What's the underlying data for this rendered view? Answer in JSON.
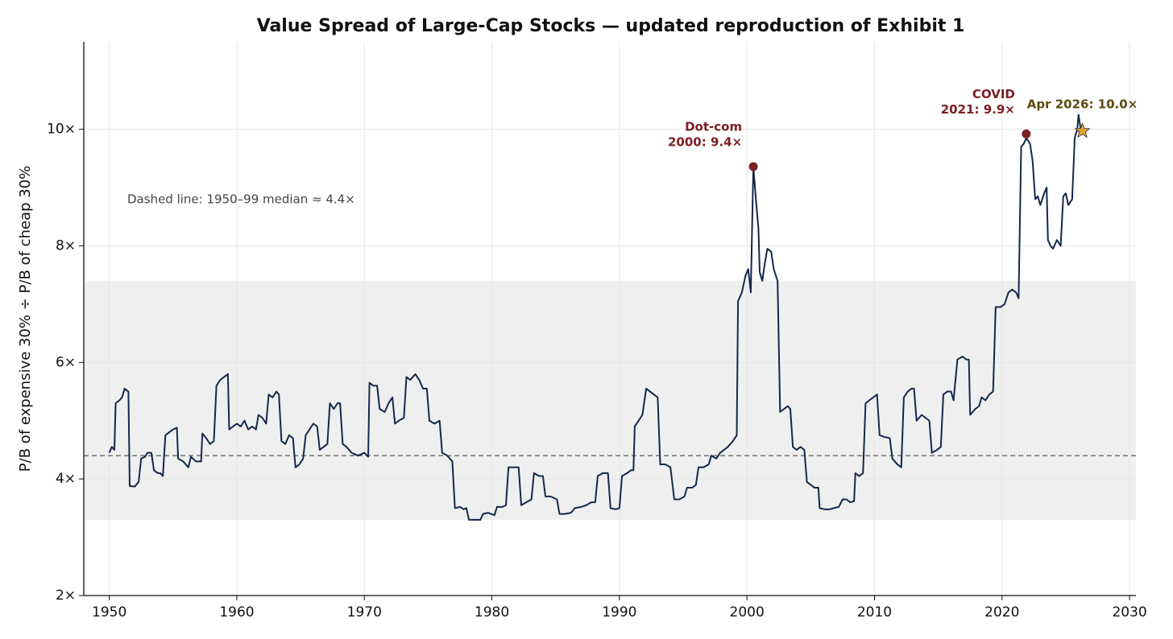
{
  "chart_data": {
    "type": "line",
    "title": "Value Spread of Large-Cap Stocks  —  updated reproduction of Exhibit 1",
    "y_label": "P/B of expensive 30%  ÷  P/B of cheap 30%",
    "color": "#14284b",
    "xlim": [
      1948,
      2030.5
    ],
    "ylim": [
      2,
      11.5
    ],
    "xticks": [
      1950,
      1960,
      1970,
      1980,
      1990,
      2000,
      2010,
      2020,
      2030
    ],
    "yticks": [
      {
        "value": 2,
        "label": "2×"
      },
      {
        "value": 4,
        "label": "4×"
      },
      {
        "value": 6,
        "label": "6×"
      },
      {
        "value": 8,
        "label": "8×"
      },
      {
        "value": 10,
        "label": "10×"
      }
    ],
    "grid": true,
    "shaded_band": [
      3.3,
      7.4
    ],
    "median_line": {
      "value": 4.4,
      "note": "Dashed line: 1950–99 median ≈ 4.4×"
    },
    "x": [
      1950.0,
      1950.2,
      1950.4,
      1950.5,
      1950.8,
      1951.0,
      1951.2,
      1951.5,
      1951.6,
      1952.0,
      1952.3,
      1952.5,
      1952.8,
      1953.0,
      1953.3,
      1953.5,
      1953.8,
      1954.0,
      1954.2,
      1954.4,
      1954.7,
      1955.0,
      1955.3,
      1955.4,
      1955.8,
      1956.2,
      1956.4,
      1956.8,
      1957.2,
      1957.3,
      1957.6,
      1957.9,
      1958.2,
      1958.4,
      1958.7,
      1959.0,
      1959.3,
      1959.4,
      1959.7,
      1960.0,
      1960.3,
      1960.6,
      1960.9,
      1961.2,
      1961.5,
      1961.7,
      1962.0,
      1962.3,
      1962.5,
      1962.8,
      1963.1,
      1963.3,
      1963.5,
      1963.8,
      1964.1,
      1964.4,
      1964.6,
      1964.9,
      1965.2,
      1965.4,
      1965.7,
      1966.0,
      1966.3,
      1966.5,
      1966.8,
      1967.1,
      1967.3,
      1967.6,
      1967.9,
      1968.1,
      1968.3,
      1968.6,
      1969.0,
      1969.5,
      1970.0,
      1970.3,
      1970.4,
      1970.7,
      1971.0,
      1971.2,
      1971.6,
      1971.9,
      1972.2,
      1972.4,
      1972.7,
      1973.1,
      1973.3,
      1973.6,
      1974.0,
      1974.3,
      1974.6,
      1974.9,
      1975.1,
      1975.5,
      1975.9,
      1976.1,
      1976.5,
      1976.9,
      1977.1,
      1977.5,
      1977.8,
      1978.0,
      1978.2,
      1978.7,
      1979.1,
      1979.3,
      1979.7,
      1980.2,
      1980.4,
      1980.8,
      1981.1,
      1981.3,
      1981.7,
      1982.1,
      1982.3,
      1982.7,
      1983.1,
      1983.3,
      1983.7,
      1984.0,
      1984.2,
      1984.6,
      1985.1,
      1985.3,
      1985.7,
      1986.2,
      1986.5,
      1987.0,
      1987.4,
      1987.8,
      1988.1,
      1988.3,
      1988.7,
      1989.1,
      1989.3,
      1989.7,
      1990.0,
      1990.2,
      1990.6,
      1990.9,
      1991.1,
      1991.2,
      1991.5,
      1991.8,
      1992.1,
      1992.4,
      1992.7,
      1993.0,
      1993.2,
      1993.6,
      1994.0,
      1994.3,
      1994.7,
      1995.1,
      1995.3,
      1995.7,
      1996.0,
      1996.2,
      1996.6,
      1997.0,
      1997.2,
      1997.6,
      1997.9,
      1998.2,
      1998.5,
      1998.9,
      1999.2,
      1999.3,
      1999.6,
      1999.9,
      2000.1,
      2000.3,
      2000.5,
      2000.7,
      2000.9,
      2001.0,
      2001.2,
      2001.4,
      2001.6,
      2001.9,
      2002.1,
      2002.4,
      2002.6,
      2002.9,
      2003.2,
      2003.4,
      2003.6,
      2003.9,
      2004.2,
      2004.5,
      2004.7,
      2005.0,
      2005.3,
      2005.6,
      2005.7,
      2006.1,
      2006.5,
      2006.8,
      2007.2,
      2007.5,
      2007.8,
      2008.1,
      2008.4,
      2008.5,
      2008.8,
      2009.1,
      2009.3,
      2009.6,
      2009.9,
      2010.2,
      2010.4,
      2010.8,
      2011.2,
      2011.4,
      2011.8,
      2012.1,
      2012.3,
      2012.6,
      2012.9,
      2013.1,
      2013.3,
      2013.7,
      2014.0,
      2014.3,
      2014.5,
      2014.9,
      2015.2,
      2015.4,
      2015.7,
      2016.0,
      2016.2,
      2016.5,
      2016.9,
      2017.2,
      2017.4,
      2017.5,
      2017.9,
      2018.2,
      2018.4,
      2018.7,
      2019.0,
      2019.3,
      2019.5,
      2019.9,
      2020.2,
      2020.5,
      2020.8,
      2021.1,
      2021.3,
      2021.5,
      2021.7,
      2021.9,
      2022.2,
      2022.4,
      2022.6,
      2022.8,
      2023.0,
      2023.3,
      2023.5,
      2023.6,
      2023.8,
      2024.0,
      2024.3,
      2024.6,
      2024.8,
      2025.0,
      2025.2,
      2025.5,
      2025.7,
      2025.9,
      2026.0,
      2026.2
    ],
    "values": [
      4.45,
      4.55,
      4.5,
      5.3,
      5.35,
      5.4,
      5.55,
      5.5,
      3.88,
      3.87,
      3.95,
      4.35,
      4.38,
      4.45,
      4.45,
      4.15,
      4.1,
      4.1,
      4.05,
      4.75,
      4.8,
      4.85,
      4.88,
      4.35,
      4.3,
      4.2,
      4.38,
      4.3,
      4.3,
      4.78,
      4.7,
      4.6,
      4.65,
      5.6,
      5.7,
      5.75,
      5.8,
      4.85,
      4.9,
      4.95,
      4.9,
      5.0,
      4.85,
      4.9,
      4.85,
      5.1,
      5.05,
      4.95,
      5.45,
      5.4,
      5.5,
      5.45,
      4.65,
      4.6,
      4.75,
      4.7,
      4.2,
      4.25,
      4.35,
      4.75,
      4.85,
      4.95,
      4.9,
      4.5,
      4.55,
      4.6,
      5.3,
      5.2,
      5.3,
      5.3,
      4.6,
      4.55,
      4.45,
      4.4,
      4.45,
      4.38,
      5.65,
      5.6,
      5.6,
      5.2,
      5.15,
      5.3,
      5.4,
      4.95,
      5.0,
      5.05,
      5.75,
      5.7,
      5.8,
      5.7,
      5.55,
      5.55,
      5.0,
      4.95,
      5.0,
      4.45,
      4.4,
      4.3,
      3.5,
      3.52,
      3.48,
      3.5,
      3.3,
      3.3,
      3.3,
      3.4,
      3.42,
      3.38,
      3.52,
      3.52,
      3.55,
      4.2,
      4.2,
      4.2,
      3.55,
      3.6,
      3.65,
      4.1,
      4.05,
      4.05,
      3.7,
      3.7,
      3.65,
      3.4,
      3.4,
      3.42,
      3.5,
      3.52,
      3.55,
      3.6,
      3.6,
      4.05,
      4.1,
      4.1,
      3.5,
      3.48,
      3.5,
      4.05,
      4.1,
      4.15,
      4.15,
      4.9,
      5.0,
      5.1,
      5.55,
      5.5,
      5.45,
      5.4,
      4.25,
      4.25,
      4.2,
      3.65,
      3.65,
      3.7,
      3.85,
      3.85,
      3.9,
      4.2,
      4.2,
      4.25,
      4.4,
      4.35,
      4.45,
      4.5,
      4.55,
      4.65,
      4.75,
      7.05,
      7.2,
      7.5,
      7.6,
      7.2,
      9.36,
      8.8,
      8.3,
      7.55,
      7.4,
      7.7,
      7.95,
      7.9,
      7.6,
      7.4,
      5.15,
      5.2,
      5.25,
      5.2,
      4.55,
      4.5,
      4.55,
      4.5,
      3.95,
      3.9,
      3.85,
      3.85,
      3.5,
      3.48,
      3.48,
      3.5,
      3.52,
      3.65,
      3.65,
      3.6,
      3.62,
      4.1,
      4.05,
      4.1,
      5.3,
      5.35,
      5.4,
      5.45,
      4.75,
      4.72,
      4.7,
      4.35,
      4.25,
      4.2,
      5.4,
      5.5,
      5.55,
      5.55,
      5.0,
      5.1,
      5.05,
      5.0,
      4.45,
      4.5,
      4.55,
      5.45,
      5.5,
      5.5,
      5.35,
      6.05,
      6.1,
      6.05,
      6.05,
      5.1,
      5.2,
      5.25,
      5.4,
      5.35,
      5.45,
      5.5,
      6.95,
      6.95,
      7.0,
      7.2,
      7.25,
      7.2,
      7.1,
      9.7,
      9.75,
      9.85,
      9.75,
      9.45,
      8.8,
      8.85,
      8.7,
      8.9,
      9.0,
      8.1,
      8.0,
      7.95,
      8.1,
      8.0,
      8.85,
      8.9,
      8.7,
      8.8,
      9.85,
      10.0,
      10.25,
      9.95
    ],
    "annotations": [
      {
        "x": 2000.5,
        "y": 9.36,
        "lines": [
          "Dot-com",
          "2000: 9.4×"
        ],
        "color": "#7b1f24",
        "marker": "circle"
      },
      {
        "x": 2021.9,
        "y": 9.92,
        "lines": [
          "COVID",
          "2021: 9.9×"
        ],
        "color": "#7b1f24",
        "marker": "circle"
      },
      {
        "x": 2026.3,
        "y": 9.97,
        "lines": [
          "Apr 2026: 10.0×"
        ],
        "color": "#5e4a0c",
        "marker": "star"
      }
    ]
  }
}
